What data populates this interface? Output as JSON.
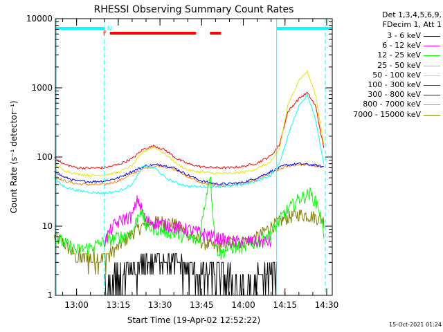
{
  "chart_data": {
    "type": "line",
    "title": "RHESSI Observing Summary Count Rates",
    "xlabel": "Start Time (19-Apr-02 12:52:22)",
    "ylabel": "Count Rate (s⁻¹ detector⁻¹)",
    "yscale": "log",
    "ylim": [
      1,
      10000
    ],
    "xlim": [
      "12:52:22",
      "14:32:00"
    ],
    "x_ticks": [
      "13:00",
      "13:15",
      "13:30",
      "13:45",
      "14:00",
      "14:15",
      "14:30"
    ],
    "y_ticks": [
      "1",
      "10",
      "100",
      "1000",
      "10000"
    ],
    "legend_header": [
      "Det 1,3,4,5,6,9,",
      "FDecim 1, Att 1"
    ],
    "legend_position": "right",
    "flags": {
      "night_label": "N",
      "flare_label": "F",
      "night_segments": [
        [
          "12:52:22",
          "13:10:00"
        ],
        [
          "14:12:00",
          "14:32:00"
        ]
      ],
      "flare_segments": [
        [
          "13:12:00",
          "13:43:00"
        ],
        [
          "13:48:00",
          "13:52:00"
        ]
      ],
      "dashed_markers": [
        "13:10:00",
        "14:29:30"
      ],
      "solid_markers": [
        "12:52:40",
        "14:12:00"
      ],
      "night_color": "#00ffff",
      "flare_color": "#ff0000"
    },
    "series": [
      {
        "name": "3 - 6 keV",
        "color": "#000000",
        "style": "noisy",
        "x": [
          "13:10",
          "13:15",
          "13:20",
          "13:25",
          "13:30",
          "13:35",
          "13:40",
          "13:45",
          "13:50",
          "13:55",
          "14:00",
          "14:05",
          "14:10",
          "14:12"
        ],
        "values": [
          1,
          1.5,
          2,
          3,
          3.5,
          3,
          2.5,
          2,
          2,
          1.5,
          1,
          1.5,
          2,
          2
        ]
      },
      {
        "name": "6 - 12 keV",
        "color": "#ff00ff",
        "style": "noisy",
        "x": [
          "13:10",
          "13:13",
          "13:17",
          "13:20",
          "13:22",
          "13:25",
          "13:30",
          "13:35",
          "13:40",
          "13:45",
          "13:50",
          "13:55",
          "14:00",
          "14:05",
          "14:10"
        ],
        "values": [
          6,
          10,
          13,
          14,
          25,
          12,
          11,
          10,
          9,
          8,
          7,
          6,
          6,
          6,
          6
        ]
      },
      {
        "name": "12 - 25 keV",
        "color": "#00ff00",
        "style": "noisy",
        "x": [
          "12:52",
          "12:55",
          "13:00",
          "13:05",
          "13:10",
          "13:15",
          "13:20",
          "13:23",
          "13:25",
          "13:30",
          "13:35",
          "13:40",
          "13:44",
          "13:48",
          "13:50",
          "13:52",
          "13:55",
          "14:00",
          "14:05",
          "14:10",
          "14:15",
          "14:20",
          "14:24",
          "14:27",
          "14:29"
        ],
        "values": [
          7,
          6,
          4.5,
          5,
          6,
          7,
          8,
          18,
          10,
          9,
          8,
          7,
          6,
          60,
          5,
          4,
          5,
          5,
          6,
          8,
          16,
          25,
          30,
          20,
          8
        ]
      },
      {
        "name": "25 - 50 keV",
        "color": "#00ffff",
        "style": "smooth",
        "x": [
          "12:52",
          "12:55",
          "13:00",
          "13:05",
          "13:10",
          "13:15",
          "13:20",
          "13:24",
          "13:28",
          "13:32",
          "13:36",
          "13:40",
          "13:45",
          "13:50",
          "13:55",
          "14:00",
          "14:05",
          "14:10",
          "14:13",
          "14:16",
          "14:20",
          "14:23",
          "14:26",
          "14:29"
        ],
        "values": [
          50,
          38,
          33,
          31,
          30,
          32,
          40,
          75,
          70,
          50,
          42,
          38,
          37,
          38,
          38,
          40,
          45,
          55,
          80,
          200,
          550,
          800,
          350,
          80
        ]
      },
      {
        "name": "50 - 100 keV",
        "color": "#e6e600",
        "style": "smooth",
        "x": [
          "12:52",
          "12:55",
          "13:00",
          "13:05",
          "13:10",
          "13:15",
          "13:20",
          "13:24",
          "13:28",
          "13:32",
          "13:36",
          "13:40",
          "13:45",
          "13:50",
          "13:55",
          "14:00",
          "14:05",
          "14:10",
          "14:13",
          "14:16",
          "14:20",
          "14:23",
          "14:26",
          "14:29"
        ],
        "values": [
          80,
          65,
          57,
          54,
          55,
          60,
          75,
          120,
          140,
          110,
          80,
          65,
          60,
          58,
          58,
          60,
          68,
          85,
          130,
          550,
          1300,
          1700,
          800,
          150
        ]
      },
      {
        "name": "100 - 300 keV",
        "color": "#ff0000",
        "style": "smooth",
        "x": [
          "12:52",
          "12:55",
          "13:00",
          "13:05",
          "13:10",
          "13:15",
          "13:20",
          "13:24",
          "13:28",
          "13:32",
          "13:36",
          "13:40",
          "13:45",
          "13:50",
          "13:55",
          "14:00",
          "14:05",
          "14:10",
          "14:13",
          "14:16",
          "14:20",
          "14:23",
          "14:26",
          "14:29"
        ],
        "values": [
          100,
          80,
          70,
          69,
          70,
          78,
          95,
          130,
          145,
          125,
          95,
          80,
          72,
          70,
          70,
          73,
          82,
          105,
          150,
          450,
          700,
          850,
          550,
          130
        ]
      },
      {
        "name": "300 - 800 keV",
        "color": "#0000ff",
        "style": "smooth",
        "x": [
          "12:52",
          "12:55",
          "13:00",
          "13:05",
          "13:10",
          "13:15",
          "13:20",
          "13:25",
          "13:30",
          "13:35",
          "13:40",
          "13:45",
          "13:50",
          "13:55",
          "14:00",
          "14:05",
          "14:10",
          "14:15",
          "14:20",
          "14:25",
          "14:29"
        ],
        "values": [
          63,
          52,
          45,
          44,
          45,
          50,
          62,
          75,
          78,
          70,
          55,
          45,
          41,
          41,
          43,
          50,
          62,
          76,
          80,
          77,
          72
        ]
      },
      {
        "name": "800 - 7000 keV",
        "color": "#ff8000",
        "style": "smooth",
        "x": [
          "12:52",
          "12:55",
          "13:00",
          "13:05",
          "13:10",
          "13:15",
          "13:20",
          "13:25",
          "13:30",
          "13:35",
          "13:40",
          "13:45",
          "13:50",
          "13:55",
          "14:00",
          "14:05",
          "14:10",
          "14:15",
          "14:20",
          "14:25",
          "14:29"
        ],
        "values": [
          55,
          46,
          41,
          40,
          40,
          45,
          57,
          70,
          75,
          67,
          52,
          42,
          39,
          39,
          41,
          47,
          58,
          72,
          78,
          75,
          70
        ]
      },
      {
        "name": "7000 - 15000 keV",
        "color": "#808000",
        "style": "noisy",
        "x": [
          "12:52",
          "12:55",
          "13:00",
          "13:05",
          "13:10",
          "13:15",
          "13:20",
          "13:25",
          "13:30",
          "13:35",
          "13:40",
          "13:45",
          "13:50",
          "13:55",
          "14:00",
          "14:05",
          "14:10",
          "14:15",
          "14:20",
          "14:25",
          "14:29"
        ],
        "values": [
          7,
          6,
          3.5,
          3.5,
          3.5,
          5,
          8,
          11,
          12,
          11,
          8,
          6,
          5,
          6,
          6,
          7,
          10,
          13,
          15,
          14,
          12
        ]
      }
    ]
  },
  "footer": {
    "timestamp": "15-Oct-2021 01:24"
  }
}
